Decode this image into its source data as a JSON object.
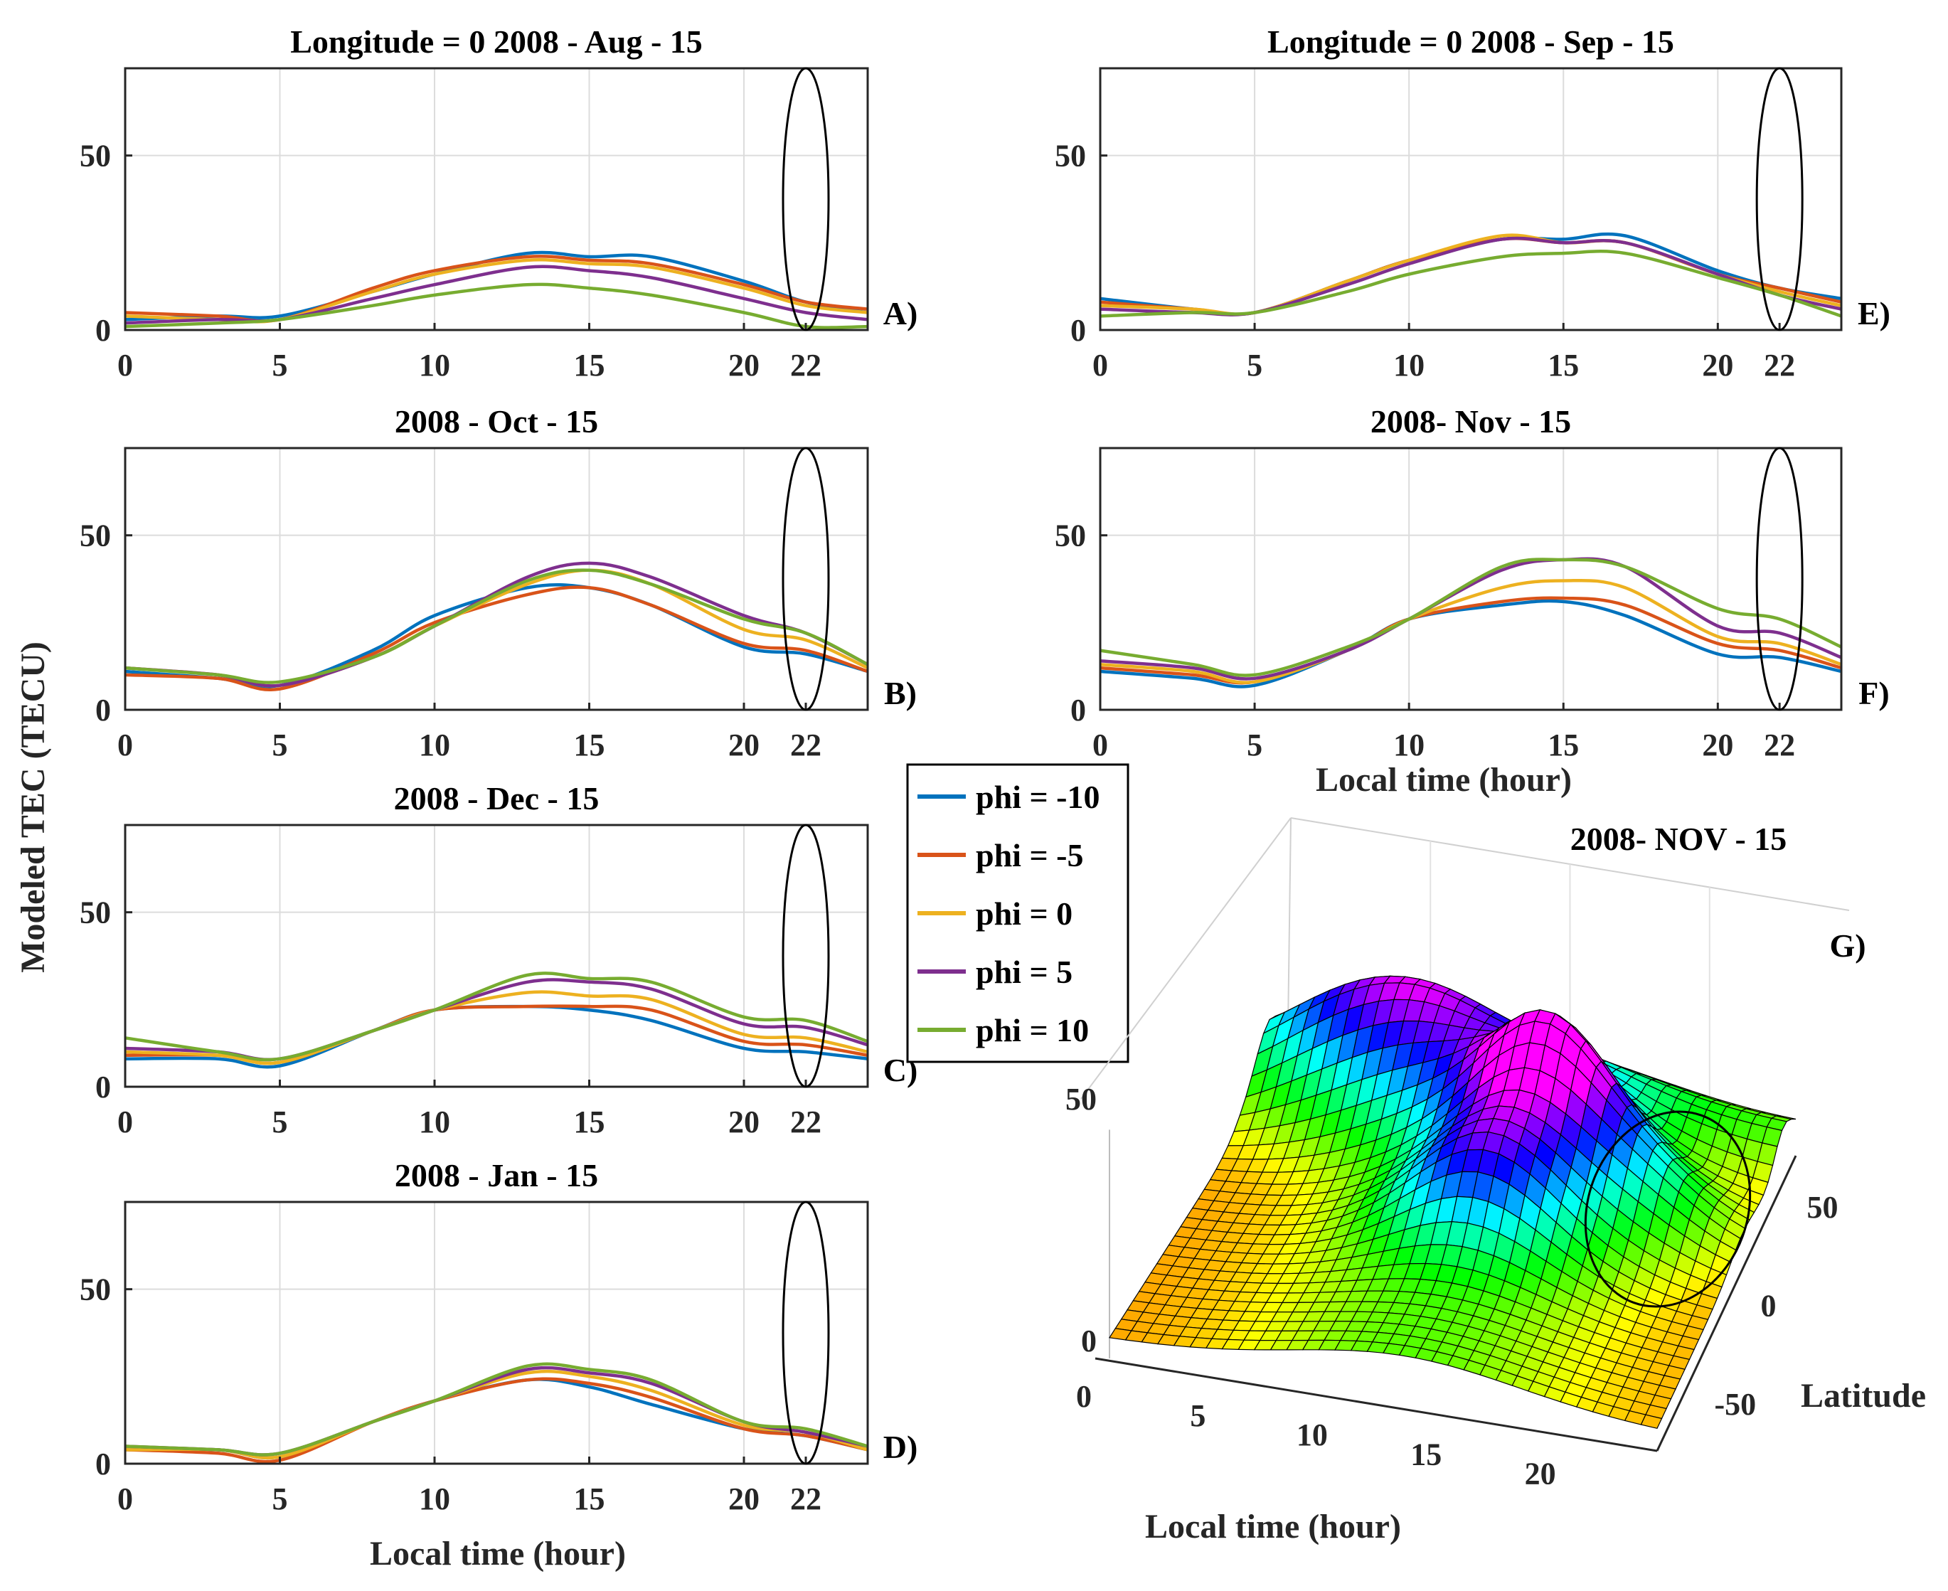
{
  "figure": {
    "ylabel": "Modeled TEC (TECU)",
    "xlabel_bottom_left": "Local time (hour)",
    "xlabel_right": "Local time (hour)",
    "highlight_tick": "22"
  },
  "legend": {
    "entries": [
      {
        "label": "phi = -10",
        "color": "#0072BD"
      },
      {
        "label": "phi = -5",
        "color": "#D95319"
      },
      {
        "label": "phi = 0",
        "color": "#EDB120"
      },
      {
        "label": "phi = 5",
        "color": "#7E2F8E"
      },
      {
        "label": "phi = 10",
        "color": "#77AC30"
      }
    ]
  },
  "chart_data": [
    {
      "id": "A",
      "panel_label": "A)",
      "type": "line",
      "title": "Longitude = 0   2008 - Aug - 15",
      "xlim": [
        0,
        24
      ],
      "ylim": [
        0,
        75
      ],
      "xticks": [
        0,
        5,
        10,
        15,
        20,
        22
      ],
      "yticks": [
        0,
        50
      ],
      "x": [
        0,
        3,
        5,
        8,
        10,
        13,
        15,
        17,
        20,
        22,
        24
      ],
      "series": [
        {
          "name": "phi = -10",
          "values": [
            3,
            4,
            4,
            11,
            16,
            22,
            21,
            21,
            14,
            8,
            5
          ]
        },
        {
          "name": "phi = -5",
          "values": [
            5,
            4,
            3,
            12,
            17,
            21,
            20,
            19,
            13,
            8,
            6
          ]
        },
        {
          "name": "phi = 0",
          "values": [
            4,
            3,
            3,
            11,
            16,
            20,
            19,
            18,
            12,
            7,
            5
          ]
        },
        {
          "name": "phi = 5",
          "values": [
            2,
            3,
            3,
            9,
            13,
            18,
            17,
            15,
            9,
            5,
            3
          ]
        },
        {
          "name": "phi = 10",
          "values": [
            1,
            2,
            3,
            7,
            10,
            13,
            12,
            10,
            5,
            1,
            1
          ]
        }
      ]
    },
    {
      "id": "E",
      "panel_label": "E)",
      "type": "line",
      "title": "Longitude = 0   2008 - Sep - 15",
      "xlim": [
        0,
        24
      ],
      "ylim": [
        0,
        75
      ],
      "xticks": [
        0,
        5,
        10,
        15,
        20,
        22
      ],
      "yticks": [
        0,
        50
      ],
      "x": [
        0,
        3,
        5,
        8,
        10,
        13,
        15,
        17,
        20,
        22,
        24
      ],
      "series": [
        {
          "name": "phi = -10",
          "values": [
            9,
            6,
            5,
            14,
            20,
            26,
            26,
            27,
            17,
            12,
            9
          ]
        },
        {
          "name": "phi = -5",
          "values": [
            8,
            6,
            5,
            14,
            20,
            26,
            25,
            25,
            16,
            12,
            8
          ]
        },
        {
          "name": "phi = 0",
          "values": [
            7,
            6,
            5,
            14,
            20,
            27,
            25,
            25,
            16,
            11,
            7
          ]
        },
        {
          "name": "phi = 5",
          "values": [
            6,
            5,
            5,
            13,
            19,
            26,
            25,
            25,
            16,
            10,
            6
          ]
        },
        {
          "name": "phi = 10",
          "values": [
            4,
            5,
            5,
            11,
            16,
            21,
            22,
            22,
            15,
            10,
            4
          ]
        }
      ]
    },
    {
      "id": "B",
      "panel_label": "B)",
      "type": "line",
      "title": "2008 - Oct - 15",
      "xlim": [
        0,
        24
      ],
      "ylim": [
        0,
        75
      ],
      "xticks": [
        0,
        5,
        10,
        15,
        20,
        22
      ],
      "yticks": [
        0,
        50
      ],
      "x": [
        0,
        3,
        5,
        8,
        10,
        13,
        15,
        17,
        20,
        22,
        24
      ],
      "series": [
        {
          "name": "phi = -10",
          "values": [
            11,
            9,
            7,
            17,
            27,
            35,
            35,
            30,
            18,
            16,
            11
          ]
        },
        {
          "name": "phi = -5",
          "values": [
            10,
            9,
            6,
            16,
            25,
            33,
            35,
            30,
            19,
            17,
            11
          ]
        },
        {
          "name": "phi = 0",
          "values": [
            12,
            10,
            7,
            15,
            24,
            36,
            40,
            36,
            23,
            20,
            12
          ]
        },
        {
          "name": "phi = 5",
          "values": [
            12,
            10,
            7,
            15,
            24,
            38,
            42,
            38,
            27,
            22,
            13
          ]
        },
        {
          "name": "phi = 10",
          "values": [
            12,
            10,
            8,
            15,
            24,
            37,
            40,
            36,
            26,
            22,
            13
          ]
        }
      ]
    },
    {
      "id": "F",
      "panel_label": "F)",
      "type": "line",
      "title": "2008- Nov - 15",
      "xlim": [
        0,
        24
      ],
      "ylim": [
        0,
        75
      ],
      "xticks": [
        0,
        5,
        10,
        15,
        20,
        22
      ],
      "yticks": [
        0,
        50
      ],
      "x": [
        0,
        3,
        5,
        8,
        10,
        13,
        15,
        17,
        20,
        22,
        24
      ],
      "series": [
        {
          "name": "phi = -10",
          "values": [
            11,
            9,
            7,
            17,
            26,
            30,
            31,
            27,
            16,
            15,
            11
          ]
        },
        {
          "name": "phi = -5",
          "values": [
            12,
            10,
            8,
            17,
            26,
            31,
            32,
            30,
            19,
            17,
            12
          ]
        },
        {
          "name": "phi = 0",
          "values": [
            13,
            11,
            8,
            17,
            26,
            35,
            37,
            35,
            21,
            19,
            13
          ]
        },
        {
          "name": "phi = 5",
          "values": [
            14,
            12,
            9,
            17,
            26,
            40,
            43,
            41,
            24,
            22,
            15
          ]
        },
        {
          "name": "phi = 10",
          "values": [
            17,
            13,
            10,
            18,
            26,
            41,
            43,
            41,
            29,
            26,
            18
          ]
        }
      ]
    },
    {
      "id": "C",
      "panel_label": "C)",
      "type": "line",
      "title": "2008 - Dec - 15",
      "xlim": [
        0,
        24
      ],
      "ylim": [
        0,
        75
      ],
      "xticks": [
        0,
        5,
        10,
        15,
        20,
        22
      ],
      "yticks": [
        0,
        50
      ],
      "x": [
        0,
        3,
        5,
        8,
        10,
        13,
        15,
        17,
        20,
        22,
        24
      ],
      "series": [
        {
          "name": "phi = -10",
          "values": [
            8,
            8,
            6,
            16,
            22,
            23,
            22,
            19,
            11,
            10,
            8
          ]
        },
        {
          "name": "phi = -5",
          "values": [
            9,
            9,
            7,
            16,
            22,
            23,
            23,
            22,
            13,
            12,
            9
          ]
        },
        {
          "name": "phi = 0",
          "values": [
            10,
            9,
            7,
            16,
            22,
            27,
            26,
            25,
            15,
            14,
            10
          ]
        },
        {
          "name": "phi = 5",
          "values": [
            11,
            10,
            8,
            16,
            22,
            30,
            30,
            28,
            18,
            17,
            12
          ]
        },
        {
          "name": "phi = 10",
          "values": [
            14,
            10,
            8,
            16,
            22,
            32,
            31,
            30,
            20,
            19,
            13
          ]
        }
      ]
    },
    {
      "id": "D",
      "panel_label": "D)",
      "type": "line",
      "title": "2008 - Jan - 15",
      "xlim": [
        0,
        24
      ],
      "ylim": [
        0,
        75
      ],
      "xticks": [
        0,
        5,
        10,
        15,
        20,
        22
      ],
      "yticks": [
        0,
        50
      ],
      "x": [
        0,
        3,
        5,
        8,
        10,
        13,
        15,
        17,
        20,
        22,
        24
      ],
      "series": [
        {
          "name": "phi = -10",
          "values": [
            4,
            4,
            2,
            12,
            18,
            24,
            22,
            17,
            10,
            8,
            4
          ]
        },
        {
          "name": "phi = -5",
          "values": [
            4,
            3,
            1,
            12,
            18,
            24,
            23,
            19,
            10,
            8,
            4
          ]
        },
        {
          "name": "phi = 0",
          "values": [
            4,
            4,
            2,
            12,
            18,
            26,
            25,
            21,
            11,
            9,
            4
          ]
        },
        {
          "name": "phi = 5",
          "values": [
            5,
            4,
            3,
            12,
            18,
            27,
            26,
            23,
            12,
            9,
            5
          ]
        },
        {
          "name": "phi = 10",
          "values": [
            5,
            4,
            3,
            12,
            18,
            28,
            27,
            24,
            12,
            10,
            5
          ]
        }
      ]
    },
    {
      "id": "G",
      "panel_label": "G)",
      "type": "surface",
      "title": "2008- NOV - 15",
      "xlabel": "Local time (hour)",
      "ylabel": "Latitude",
      "xticks": [
        "0",
        "5",
        "10",
        "15",
        "20"
      ],
      "yticks": [
        "-50",
        "0",
        "50"
      ],
      "zticks": [
        "0",
        "50"
      ],
      "xlim": [
        0,
        24
      ],
      "ylim": [
        -75,
        75
      ],
      "zlim": [
        0,
        75
      ]
    }
  ]
}
